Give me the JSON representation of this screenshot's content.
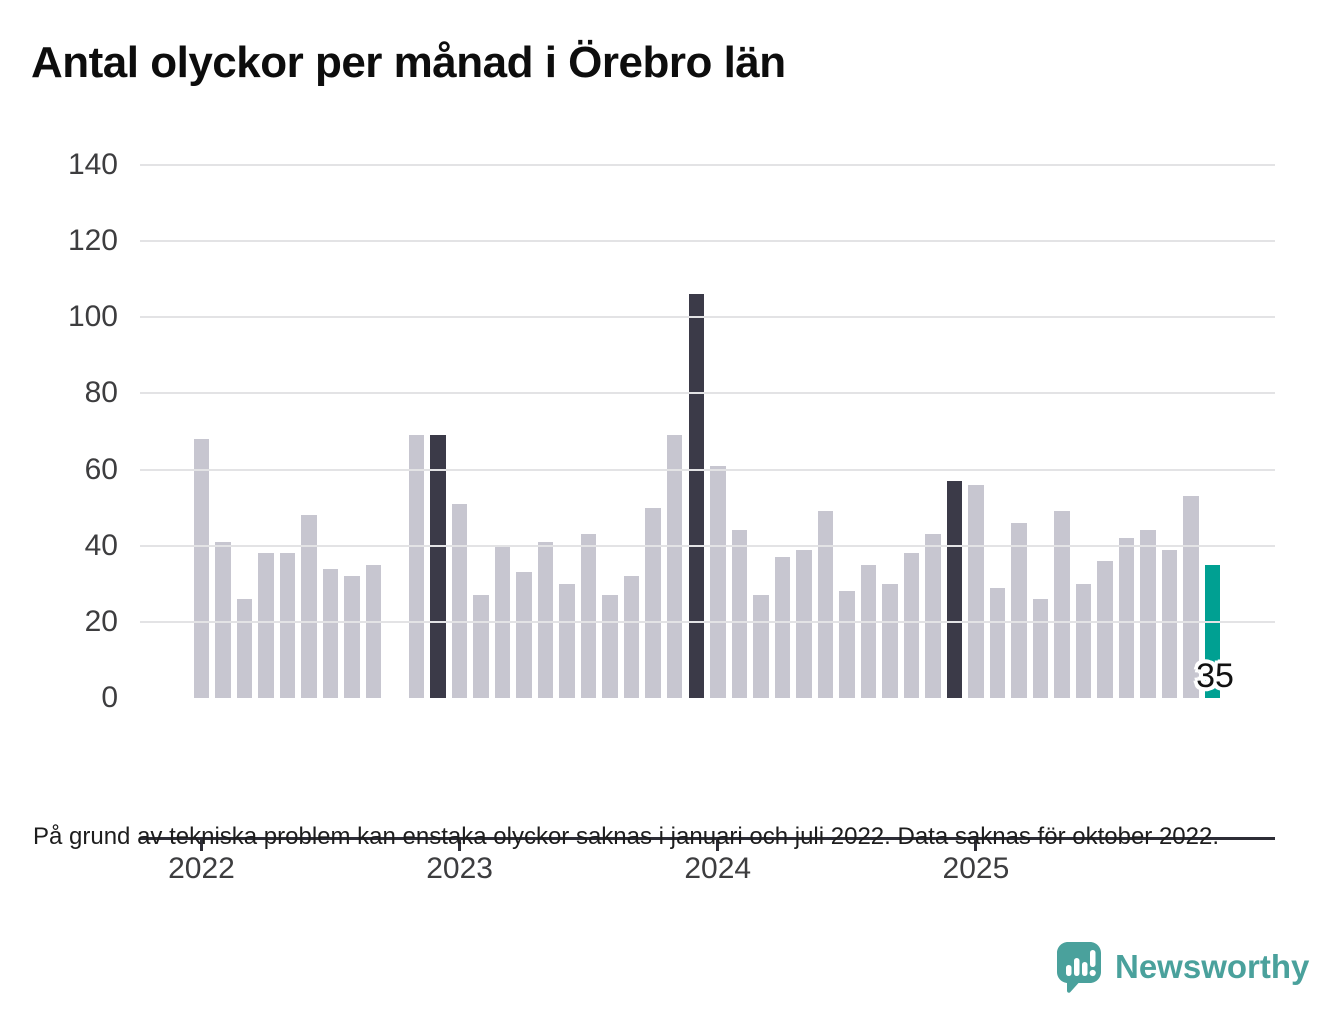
{
  "title": "Antal olyckor per månad i Örebro län",
  "footnote": "På grund av tekniska problem kan enstaka olyckor saknas i januari och juli 2022. Data saknas för oktober 2022.",
  "branding": {
    "logo_text": "Newsworthy",
    "logo_color": "#4aa19c"
  },
  "colors": {
    "bar_default": "#c7c6d0",
    "bar_highlight": "#3b3a48",
    "bar_latest": "#00a092",
    "axis": "#2d2d36",
    "gridline": "#e3e3e5"
  },
  "chart_data": {
    "type": "bar",
    "title": "Antal olyckor per månad i Örebro län",
    "xlabel": "",
    "ylabel": "",
    "ylim": [
      0,
      140
    ],
    "grid": true,
    "legend": false,
    "y_ticks": [
      0,
      20,
      40,
      60,
      80,
      100,
      120,
      140
    ],
    "x_tick_labels": [
      "2022",
      "2023",
      "2024",
      "2025"
    ],
    "x": [
      "2022-01",
      "2022-02",
      "2022-03",
      "2022-04",
      "2022-05",
      "2022-06",
      "2022-07",
      "2022-08",
      "2022-09",
      "2022-10",
      "2022-11",
      "2022-12",
      "2023-01",
      "2023-02",
      "2023-03",
      "2023-04",
      "2023-05",
      "2023-06",
      "2023-07",
      "2023-08",
      "2023-09",
      "2023-10",
      "2023-11",
      "2023-12",
      "2024-01",
      "2024-02",
      "2024-03",
      "2024-04",
      "2024-05",
      "2024-06",
      "2024-07",
      "2024-08",
      "2024-09",
      "2024-10",
      "2024-11",
      "2024-12",
      "2025-01",
      "2025-02",
      "2025-03",
      "2025-04",
      "2025-05",
      "2025-06",
      "2025-07",
      "2025-08",
      "2025-09",
      "2025-10",
      "2025-11",
      "2025-12"
    ],
    "values": [
      68,
      41,
      26,
      38,
      38,
      48,
      34,
      32,
      35,
      null,
      69,
      69,
      51,
      27,
      40,
      33,
      41,
      30,
      43,
      27,
      32,
      50,
      69,
      106,
      61,
      44,
      27,
      37,
      39,
      49,
      28,
      35,
      30,
      38,
      43,
      57,
      56,
      29,
      46,
      26,
      49,
      30,
      36,
      42,
      44,
      39,
      53,
      35
    ],
    "missing_months": [
      "2022-10"
    ],
    "highlighted_months": [
      "2022-12",
      "2023-12",
      "2024-12"
    ],
    "latest_month": "2025-12",
    "latest_label": "35"
  }
}
